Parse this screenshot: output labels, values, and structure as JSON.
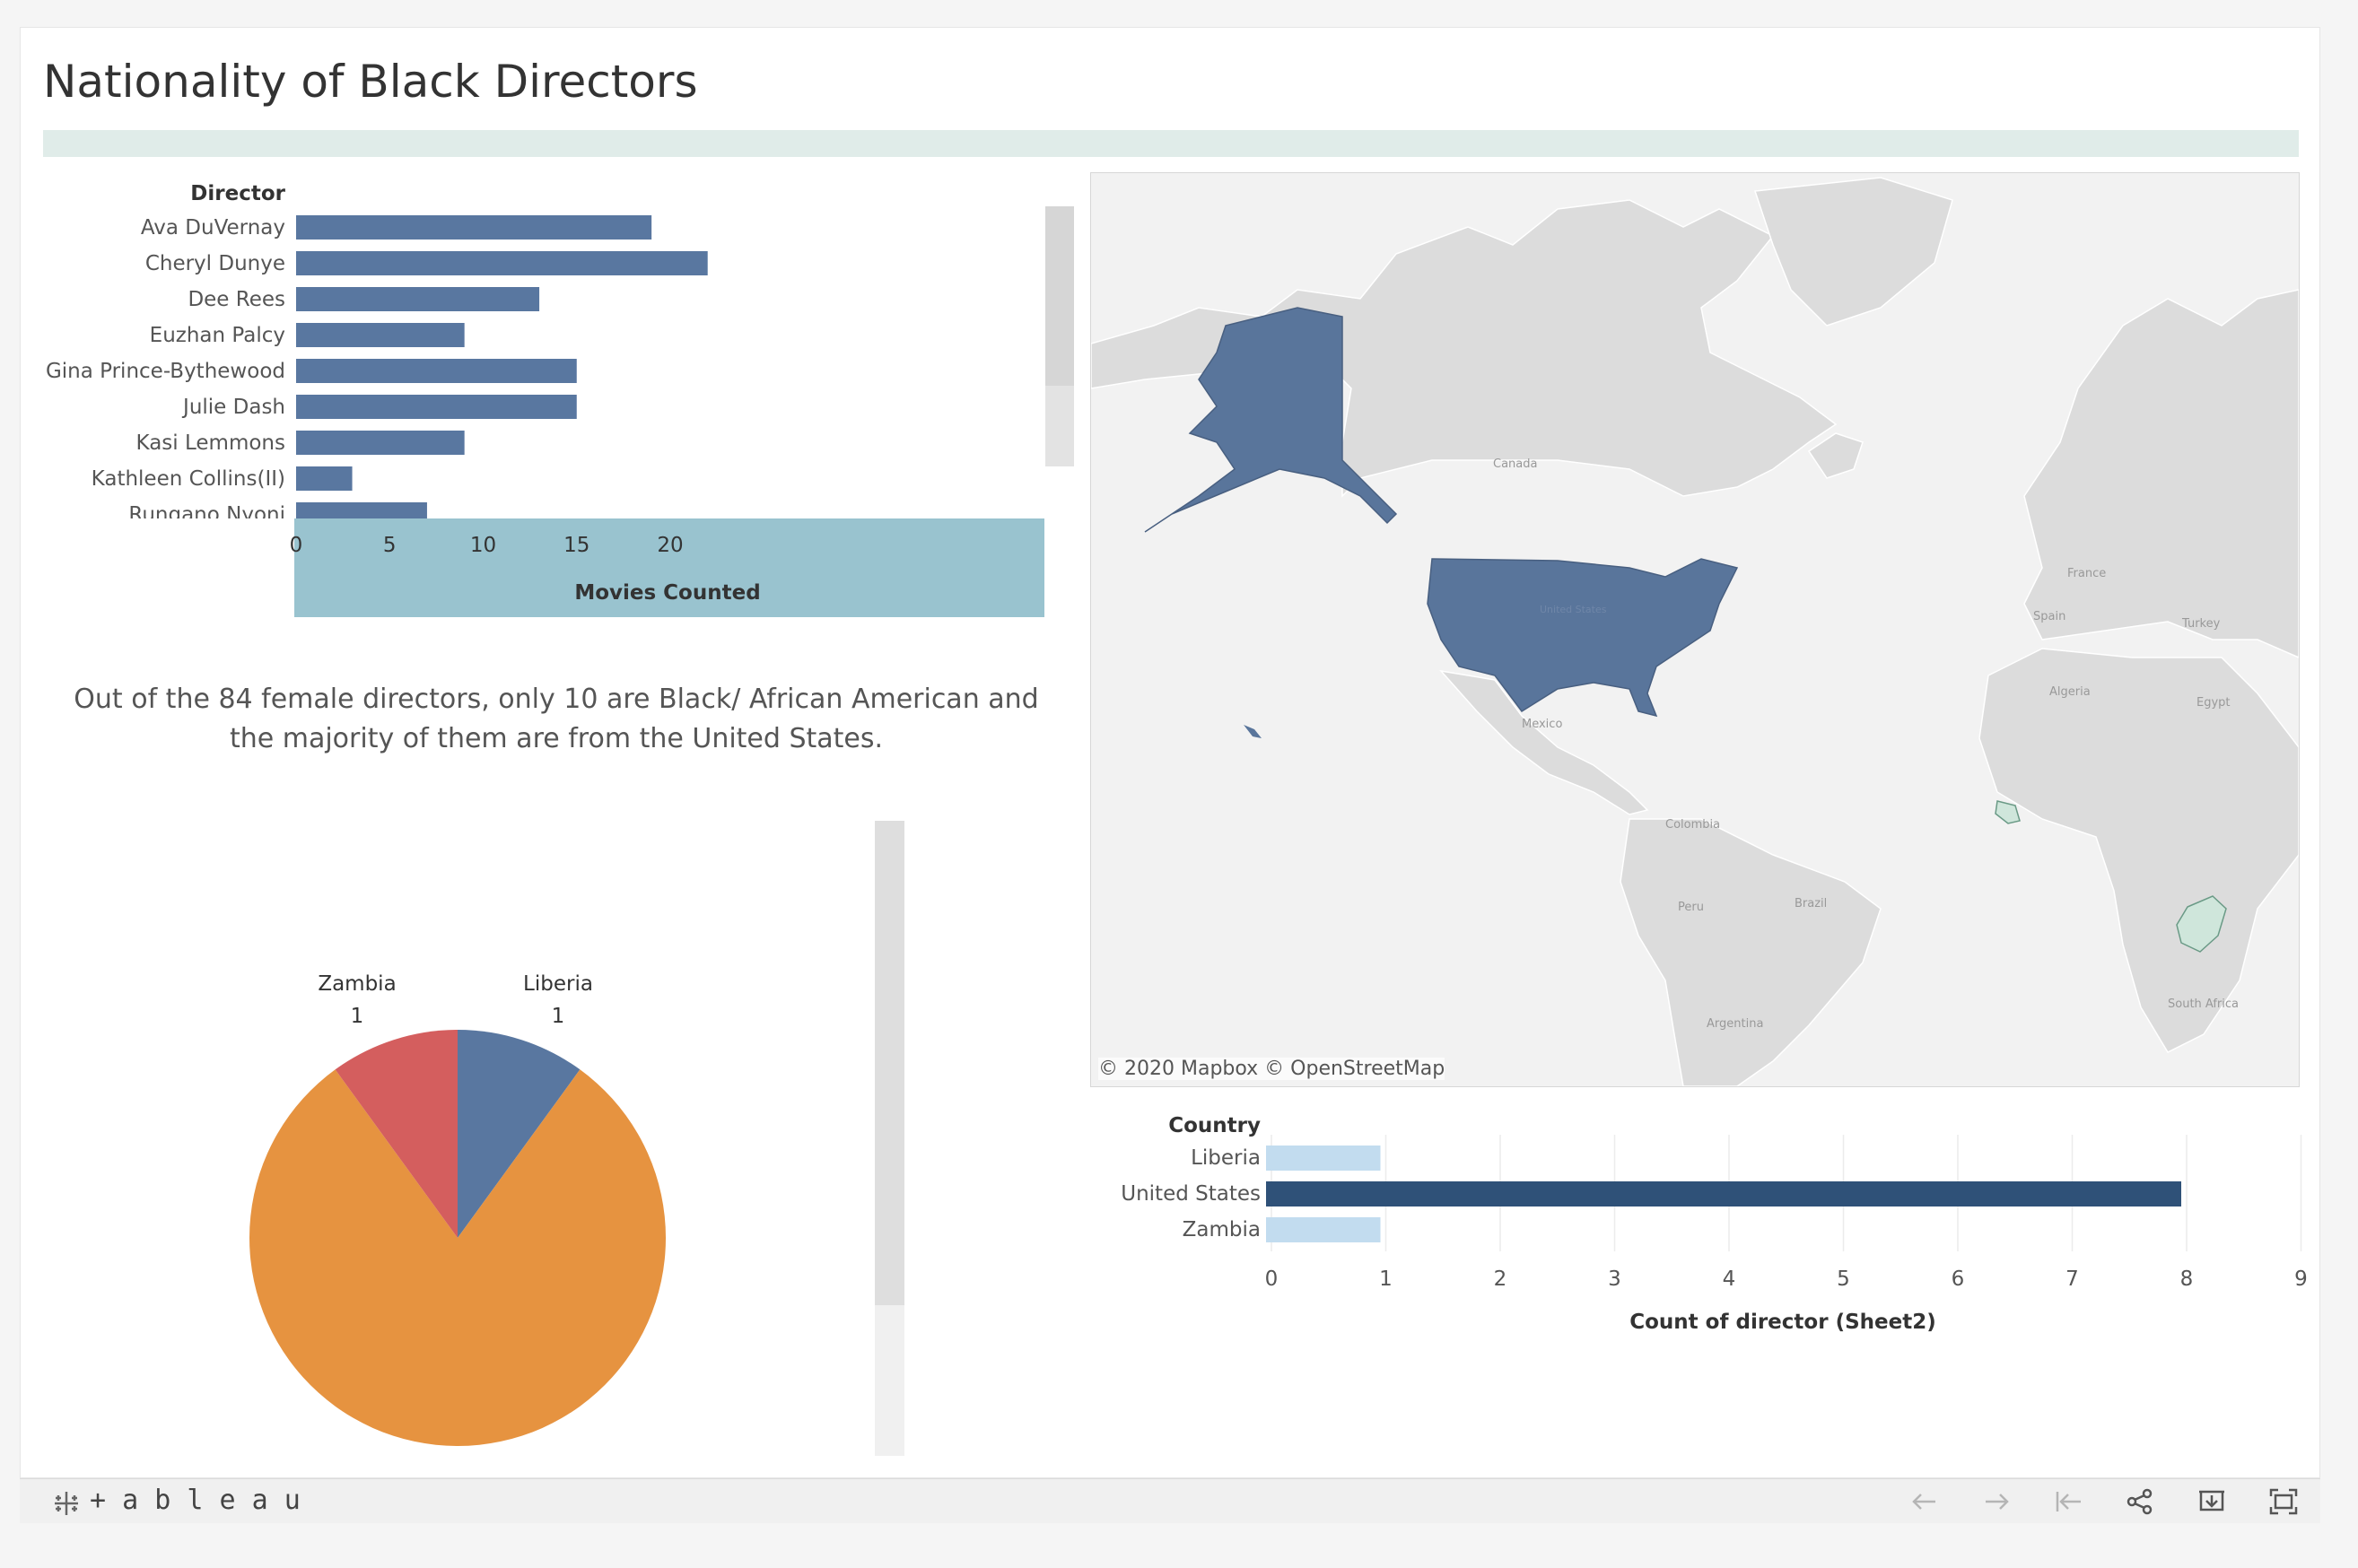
{
  "dashboard": {
    "title": "Nationality of Black Directors",
    "caption": "Out of the 84 female directors, only 10 are Black/ African American and the majority of them are from the United States."
  },
  "map": {
    "attribution": "© 2020 Mapbox  © OpenStreetMap",
    "place_labels": [
      "Canada",
      "United States",
      "Mexico",
      "Colombia",
      "Peru",
      "Brazil",
      "Argentina",
      "France",
      "Spain",
      "Turkey",
      "Algeria",
      "Egypt",
      "South Africa"
    ],
    "highlight_color": "#59759b",
    "minor_highlight_color": "#cfe6db"
  },
  "chart_data": [
    {
      "type": "bar",
      "orientation": "horizontal",
      "title": "",
      "ylabel": "Director",
      "xlabel": "Movies Counted",
      "categories": [
        "Ava DuVernay",
        "Cheryl Dunye",
        "Dee Rees",
        "Euzhan Palcy",
        "Gina Prince-Bythewood",
        "Julie Dash",
        "Kasi Lemmons",
        "Kathleen Collins(II)",
        "Rungano Nyoni"
      ],
      "values": [
        19,
        22,
        13,
        9,
        15,
        15,
        9,
        3,
        7
      ],
      "xticks": [
        "0",
        "5",
        "10",
        "15",
        "20"
      ],
      "xlim": [
        0,
        24
      ],
      "color": "#5977a0"
    },
    {
      "type": "pie",
      "labels": [
        "Liberia",
        "United States",
        "Zambia"
      ],
      "values": [
        1,
        8,
        1
      ],
      "visible_labels": [
        {
          "name": "Zambia",
          "value": "1"
        },
        {
          "name": "Liberia",
          "value": "1"
        }
      ],
      "colors": [
        "#5977a0",
        "#e69340",
        "#d45e5e"
      ]
    },
    {
      "type": "bar",
      "orientation": "horizontal",
      "ylabel": "Country",
      "xlabel": "Count of director (Sheet2)",
      "categories": [
        "Liberia",
        "United States",
        "Zambia"
      ],
      "values": [
        1,
        8,
        1
      ],
      "xticks": [
        "0",
        "1",
        "2",
        "3",
        "4",
        "5",
        "6",
        "7",
        "8",
        "9"
      ],
      "xlim": [
        0,
        9
      ],
      "colors": [
        "#c2dcef",
        "#2f5178",
        "#c2dcef"
      ]
    }
  ],
  "toolbar": {
    "logo_text": "+ a b l e a u",
    "buttons": [
      "undo",
      "redo",
      "revert",
      "share",
      "download",
      "fullscreen"
    ]
  }
}
